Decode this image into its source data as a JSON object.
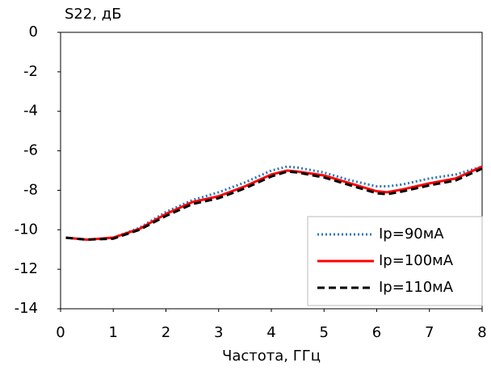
{
  "chart_data": {
    "type": "line",
    "y_label": "S22, дБ",
    "x_label": "Частота, ГГц",
    "x": [
      0.1,
      0.5,
      1,
      1.5,
      2,
      2.5,
      3,
      3.5,
      4,
      4.3,
      4.5,
      5,
      5.5,
      6,
      6.2,
      6.5,
      7,
      7.5,
      8
    ],
    "series": [
      {
        "name": "Ip=90мА",
        "color": "#2e75b6",
        "linestyle": "dotted",
        "values": [
          -10.4,
          -10.5,
          -10.4,
          -9.9,
          -9.1,
          -8.5,
          -8.1,
          -7.6,
          -7.0,
          -6.8,
          -6.85,
          -7.1,
          -7.5,
          -7.8,
          -7.8,
          -7.7,
          -7.4,
          -7.2,
          -6.8
        ]
      },
      {
        "name": "Ip=100мА",
        "color": "#ff0000",
        "linestyle": "solid",
        "values": [
          -10.4,
          -10.5,
          -10.4,
          -9.95,
          -9.2,
          -8.6,
          -8.3,
          -7.8,
          -7.2,
          -7.0,
          -7.05,
          -7.25,
          -7.65,
          -8.05,
          -8.1,
          -7.95,
          -7.65,
          -7.4,
          -6.8
        ]
      },
      {
        "name": "Ip=110мА",
        "color": "#000000",
        "linestyle": "dashed",
        "values": [
          -10.4,
          -10.5,
          -10.45,
          -10.0,
          -9.3,
          -8.7,
          -8.4,
          -7.9,
          -7.3,
          -7.05,
          -7.1,
          -7.35,
          -7.75,
          -8.15,
          -8.2,
          -8.05,
          -7.75,
          -7.5,
          -6.9
        ]
      }
    ],
    "xlim": [
      0,
      8
    ],
    "xticks": [
      0,
      1,
      2,
      3,
      4,
      5,
      6,
      7,
      8
    ],
    "ylim": [
      -14,
      0
    ],
    "yticks": [
      0,
      -2,
      -4,
      -6,
      -8,
      -10,
      -12,
      -14
    ],
    "grid": false,
    "legend": "lower right"
  }
}
